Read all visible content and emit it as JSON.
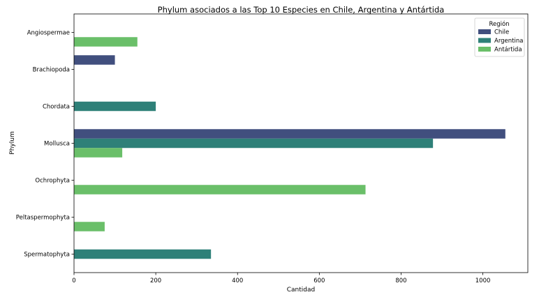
{
  "chart_data": {
    "type": "bar",
    "orientation": "horizontal",
    "title": "Phylum asociados a las Top 10 Especies en Chile, Argentina y Antártida",
    "xlabel": "Cantidad",
    "ylabel": "Phylum",
    "xlim": [
      0,
      1110
    ],
    "xticks": [
      0,
      200,
      400,
      600,
      800,
      1000
    ],
    "categories": [
      "Angiospermae",
      "Brachiopoda",
      "Chordata",
      "Mollusca",
      "Ochrophyta",
      "Peltaspermophyta",
      "Spermatophyta"
    ],
    "legend_title": "Región",
    "legend_position": "top-right",
    "series": [
      {
        "name": "Chile",
        "color": "#414f7e",
        "values": [
          0,
          100,
          0,
          1055,
          0,
          0,
          0
        ]
      },
      {
        "name": "Argentina",
        "color": "#2e8078",
        "values": [
          0,
          0,
          200,
          878,
          0,
          0,
          335
        ]
      },
      {
        "name": "Antártida",
        "color": "#6abf69",
        "values": [
          155,
          0,
          0,
          118,
          713,
          75,
          0
        ]
      }
    ]
  }
}
